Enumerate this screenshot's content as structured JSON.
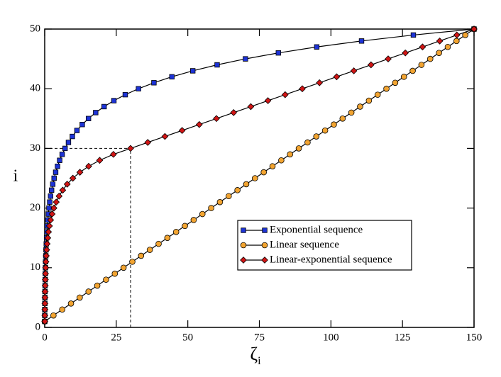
{
  "chart_data": {
    "type": "line",
    "x_label": {
      "symbol": "ζ",
      "subscript": "i"
    },
    "y_label": "i",
    "xlim": [
      0,
      150
    ],
    "ylim": [
      0,
      50
    ],
    "xticks": [
      0,
      25,
      50,
      75,
      100,
      125,
      150
    ],
    "yticks": [
      0,
      10,
      20,
      30,
      40,
      50
    ],
    "reference_lines": {
      "x": 30,
      "y": 30
    },
    "legend_position": "lower-right",
    "y": [
      1,
      2,
      3,
      4,
      5,
      6,
      7,
      8,
      9,
      10,
      11,
      12,
      13,
      14,
      15,
      16,
      17,
      18,
      19,
      20,
      21,
      22,
      23,
      24,
      25,
      26,
      27,
      28,
      29,
      30,
      31,
      32,
      33,
      34,
      35,
      36,
      37,
      38,
      39,
      40,
      41,
      42,
      43,
      44,
      45,
      46,
      47,
      48,
      49,
      50
    ],
    "series": [
      {
        "name": "Exponential sequence",
        "color": "#1d33d6",
        "marker": "square",
        "x": [
          0,
          0.01,
          0.03,
          0.05,
          0.07,
          0.1,
          0.13,
          0.17,
          0.21,
          0.26,
          0.31,
          0.38,
          0.46,
          0.55,
          0.65,
          0.77,
          0.91,
          1.08,
          1.27,
          1.49,
          1.75,
          2.05,
          2.4,
          2.81,
          3.28,
          3.83,
          4.48,
          5.22,
          6.1,
          7.11,
          8.29,
          9.66,
          11.26,
          13.12,
          15.29,
          17.81,
          20.75,
          24.17,
          28.14,
          32.77,
          38.16,
          44.43,
          51.74,
          60.24,
          70.13,
          81.64,
          95.05,
          110.7,
          128.8,
          150
        ]
      },
      {
        "name": "Linear sequence",
        "color": "#f2a431",
        "marker": "circle",
        "x": [
          0,
          3.06,
          6.12,
          9.18,
          12.24,
          15.31,
          18.37,
          21.43,
          24.49,
          27.55,
          30.61,
          33.67,
          36.73,
          39.8,
          42.86,
          45.92,
          48.98,
          52.04,
          55.1,
          58.16,
          61.22,
          64.29,
          67.35,
          70.41,
          73.47,
          76.53,
          79.59,
          82.65,
          85.71,
          88.78,
          91.84,
          94.9,
          97.96,
          101.02,
          104.08,
          107.14,
          110.2,
          113.27,
          116.33,
          119.39,
          122.45,
          125.51,
          128.57,
          131.63,
          134.69,
          137.76,
          140.82,
          143.88,
          146.94,
          150
        ]
      },
      {
        "name": "Linear-exponential sequence",
        "color": "#d01515",
        "marker": "diamond",
        "x": [
          0.05,
          0.06,
          0.07,
          0.09,
          0.11,
          0.14,
          0.18,
          0.22,
          0.28,
          0.35,
          0.43,
          0.54,
          0.68,
          0.84,
          1.06,
          1.32,
          1.65,
          2.06,
          2.58,
          3.22,
          4.03,
          5.03,
          6.29,
          7.86,
          9.83,
          12.29,
          15.36,
          19.2,
          24,
          30,
          36,
          42,
          48,
          54,
          60,
          66,
          72,
          78,
          84,
          90,
          96,
          102,
          108,
          114,
          120,
          126,
          132,
          138,
          144,
          150
        ]
      }
    ]
  }
}
